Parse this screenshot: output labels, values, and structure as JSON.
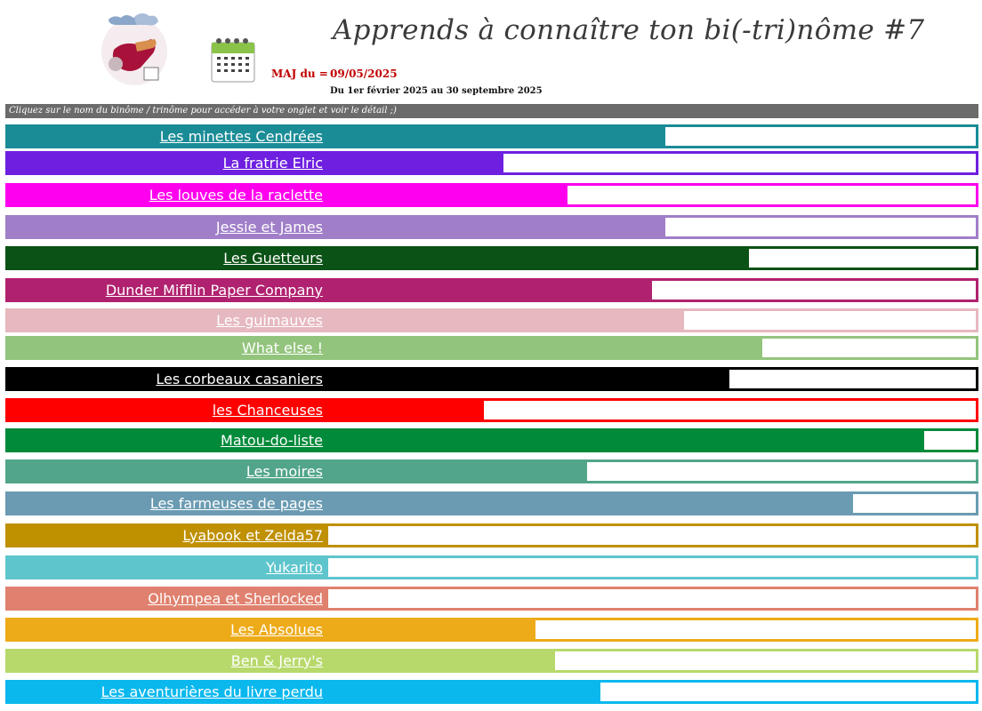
{
  "header": {
    "title": "Apprends à connaître ton bi(-tri)nôme #7",
    "maj_label": "MAJ du =",
    "maj_date": "09/05/2025",
    "period": "Du 1er février 2025 au 30 septembre 2025",
    "instruction": "Cliquez sur le nom du binôme / trinôme pour accéder à votre onglet et voir le détail ;)",
    "icons": [
      "book-club-logo",
      "calendar-icon"
    ]
  },
  "teams": [
    {
      "name": "Les minettes Cendrées",
      "color": "#1a8c96",
      "progress": 0.52
    },
    {
      "name": "La fratrie Elric",
      "color": "#6e1fe0",
      "progress": 0.27
    },
    {
      "name": "Les louves de la raclette",
      "color": "#ff00ee",
      "progress": 0.37
    },
    {
      "name": "Jessie et James",
      "color": "#a07ec8",
      "progress": 0.52
    },
    {
      "name": "Les Guetteurs",
      "color": "#0b5216",
      "progress": 0.65
    },
    {
      "name": "Dunder Mifflin Paper Company",
      "color": "#b0216f",
      "progress": 0.5
    },
    {
      "name": "Les guimauves",
      "color": "#e6b8bf",
      "progress": 0.55
    },
    {
      "name": "What else !",
      "color": "#93c47d",
      "progress": 0.67
    },
    {
      "name": "Les corbeaux casaniers",
      "color": "#000000",
      "progress": 0.62
    },
    {
      "name": "les Chanceuses",
      "color": "#ff0000",
      "progress": 0.24
    },
    {
      "name": "Matou-do-liste",
      "color": "#008a3a",
      "progress": 0.92
    },
    {
      "name": "Les moires",
      "color": "#52a58a",
      "progress": 0.4
    },
    {
      "name": "Les farmeuses de pages",
      "color": "#6a9bb2",
      "progress": 0.81
    },
    {
      "name": "Lyabook et Zelda57",
      "color": "#bf9000",
      "progress": 0.0
    },
    {
      "name": "Yukarito",
      "color": "#5ec5cd",
      "progress": 0.0
    },
    {
      "name": "Olhympea et Sherlocked",
      "color": "#e0806e",
      "progress": 0.0
    },
    {
      "name": "Les Absolues",
      "color": "#eeab19",
      "progress": 0.32
    },
    {
      "name": "Ben & Jerry's",
      "color": "#b7d96b",
      "progress": 0.35
    },
    {
      "name": "Les aventurières du livre perdu",
      "color": "#0ab8ee",
      "progress": 0.42
    }
  ]
}
